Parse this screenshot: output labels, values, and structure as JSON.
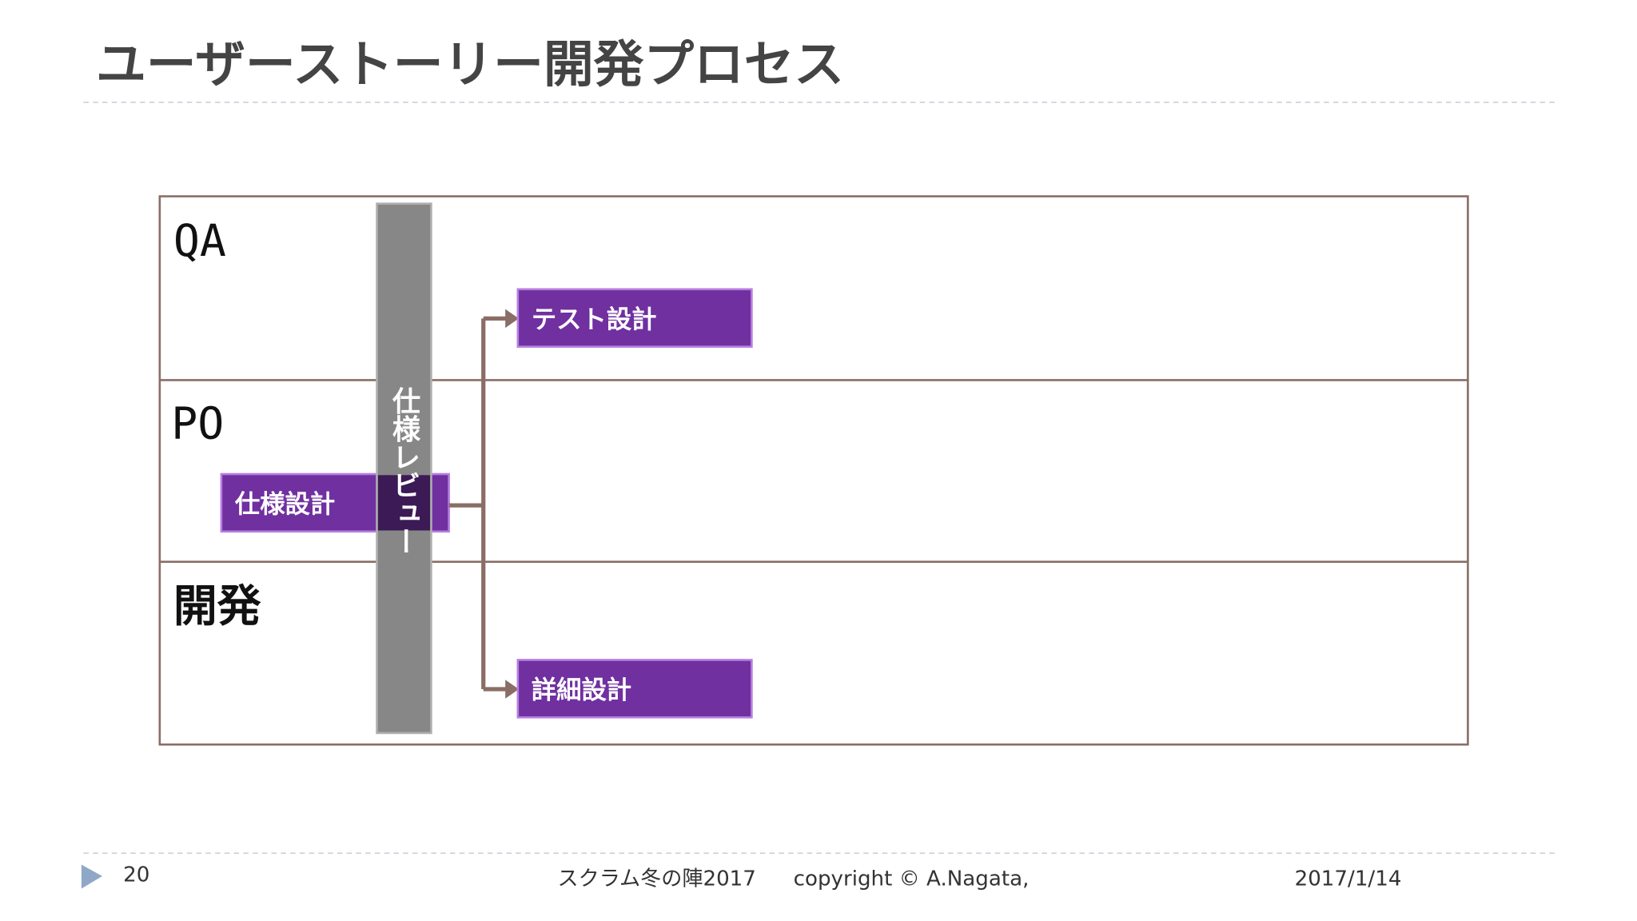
{
  "header": {
    "title": "ユーザーストーリー開発プロセス"
  },
  "lanes": [
    "QA",
    "PO",
    "開発"
  ],
  "review": "仕様レビュー",
  "tasks": {
    "test_design": "テスト設計",
    "spec_design": "仕様設計",
    "detail_design": "詳細設計"
  },
  "footer": {
    "page": "20",
    "event": "スクラム冬の陣2017",
    "copyright": "copyright © A.Nagata,",
    "date": "2017/1/14"
  }
}
